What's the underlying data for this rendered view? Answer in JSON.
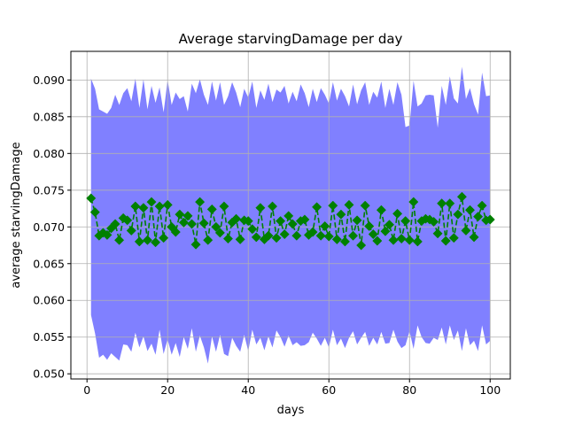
{
  "chart_data": {
    "type": "line",
    "title": "Average starvingDamage per day",
    "xlabel": "days",
    "ylabel": "average starvingDamage",
    "xlim": [
      -4,
      105
    ],
    "ylim": [
      0.0493,
      0.0939
    ],
    "xticks": [
      0,
      20,
      40,
      60,
      80,
      100
    ],
    "yticks": [
      0.05,
      0.055,
      0.06,
      0.065,
      0.07,
      0.075,
      0.08,
      0.085,
      0.09
    ],
    "ytick_labels": [
      "0.050",
      "0.055",
      "0.060",
      "0.065",
      "0.070",
      "0.075",
      "0.080",
      "0.085",
      "0.090"
    ],
    "grid": true,
    "colors": {
      "band": "#8080ff",
      "line": "#008000",
      "marker": "#008000"
    },
    "series": [
      {
        "kind": "band",
        "x": [
          1,
          2,
          3,
          4,
          5,
          6,
          7,
          8,
          9,
          10,
          11,
          12,
          13,
          14,
          15,
          16,
          17,
          18,
          19,
          20,
          21,
          22,
          23,
          24,
          25,
          26,
          27,
          28,
          29,
          30,
          31,
          32,
          33,
          34,
          35,
          36,
          37,
          38,
          39,
          40,
          41,
          42,
          43,
          44,
          45,
          46,
          47,
          48,
          49,
          50,
          51,
          52,
          53,
          54,
          55,
          56,
          57,
          58,
          59,
          60,
          61,
          62,
          63,
          64,
          65,
          66,
          67,
          68,
          69,
          70,
          71,
          72,
          73,
          74,
          75,
          76,
          77,
          78,
          79,
          80,
          81,
          82,
          83,
          84,
          85,
          86,
          87,
          88,
          89,
          90,
          91,
          92,
          93,
          94,
          95,
          96,
          97,
          98,
          99,
          100
        ],
        "upper": [
          0.0902,
          0.0888,
          0.086,
          0.0857,
          0.0854,
          0.0862,
          0.088,
          0.0866,
          0.0882,
          0.0889,
          0.0871,
          0.0902,
          0.0862,
          0.0901,
          0.086,
          0.0892,
          0.0869,
          0.089,
          0.0856,
          0.09,
          0.0866,
          0.0883,
          0.0874,
          0.0878,
          0.0857,
          0.0895,
          0.0882,
          0.0901,
          0.088,
          0.0866,
          0.0898,
          0.0872,
          0.0897,
          0.0866,
          0.0878,
          0.0897,
          0.0883,
          0.0863,
          0.0888,
          0.0876,
          0.0898,
          0.0862,
          0.0886,
          0.0873,
          0.0895,
          0.087,
          0.0887,
          0.0883,
          0.0892,
          0.0868,
          0.0884,
          0.0871,
          0.0894,
          0.0882,
          0.0863,
          0.0888,
          0.087,
          0.0889,
          0.088,
          0.0868,
          0.0897,
          0.0872,
          0.0888,
          0.0878,
          0.0864,
          0.0894,
          0.0867,
          0.0886,
          0.0897,
          0.0866,
          0.0884,
          0.0876,
          0.0898,
          0.0862,
          0.0888,
          0.0866,
          0.0897,
          0.088,
          0.0836,
          0.0838,
          0.0899,
          0.0864,
          0.0868,
          0.0879,
          0.088,
          0.0879,
          0.0835,
          0.0892,
          0.0866,
          0.0905,
          0.0875,
          0.0868,
          0.0918,
          0.0874,
          0.0889,
          0.0867,
          0.0853,
          0.091,
          0.0878,
          0.0879
        ],
        "lower": [
          0.058,
          0.0555,
          0.0522,
          0.0526,
          0.0519,
          0.0528,
          0.0523,
          0.0518,
          0.054,
          0.0539,
          0.053,
          0.0556,
          0.0536,
          0.0551,
          0.0531,
          0.0541,
          0.0526,
          0.056,
          0.0527,
          0.0547,
          0.0526,
          0.0542,
          0.0523,
          0.055,
          0.0534,
          0.0562,
          0.053,
          0.0552,
          0.0536,
          0.0514,
          0.0551,
          0.053,
          0.0553,
          0.0527,
          0.0524,
          0.0549,
          0.0538,
          0.053,
          0.0553,
          0.0531,
          0.056,
          0.054,
          0.0549,
          0.0532,
          0.0551,
          0.0536,
          0.0559,
          0.055,
          0.0537,
          0.0552,
          0.0539,
          0.0543,
          0.0538,
          0.0539,
          0.0543,
          0.0556,
          0.0548,
          0.0538,
          0.0549,
          0.0536,
          0.056,
          0.0539,
          0.0548,
          0.0535,
          0.0549,
          0.0558,
          0.054,
          0.0549,
          0.0557,
          0.0538,
          0.0549,
          0.054,
          0.0557,
          0.0541,
          0.0542,
          0.056,
          0.0544,
          0.0535,
          0.0539,
          0.0558,
          0.0534,
          0.0566,
          0.055,
          0.0542,
          0.0541,
          0.0549,
          0.0546,
          0.0563,
          0.054,
          0.0566,
          0.0546,
          0.0559,
          0.0531,
          0.0562,
          0.0539,
          0.0545,
          0.0531,
          0.0566,
          0.054,
          0.0545
        ]
      },
      {
        "kind": "line",
        "x": [
          1,
          2,
          3,
          4,
          5,
          6,
          7,
          8,
          9,
          10,
          11,
          12,
          13,
          14,
          15,
          16,
          17,
          18,
          19,
          20,
          21,
          22,
          23,
          24,
          25,
          26,
          27,
          28,
          29,
          30,
          31,
          32,
          33,
          34,
          35,
          36,
          37,
          38,
          39,
          40,
          41,
          42,
          43,
          44,
          45,
          46,
          47,
          48,
          49,
          50,
          51,
          52,
          53,
          54,
          55,
          56,
          57,
          58,
          59,
          60,
          61,
          62,
          63,
          64,
          65,
          66,
          67,
          68,
          69,
          70,
          71,
          72,
          73,
          74,
          75,
          76,
          77,
          78,
          79,
          80,
          81,
          82,
          83,
          84,
          85,
          86,
          87,
          88,
          89,
          90,
          91,
          92,
          93,
          94,
          95,
          96,
          97,
          98,
          99,
          100
        ],
        "values": [
          0.0739,
          0.072,
          0.0688,
          0.0692,
          0.0689,
          0.0698,
          0.0704,
          0.0682,
          0.0712,
          0.0709,
          0.0695,
          0.0728,
          0.068,
          0.0726,
          0.0682,
          0.0734,
          0.0679,
          0.0728,
          0.0685,
          0.073,
          0.07,
          0.0693,
          0.0717,
          0.0706,
          0.0715,
          0.0704,
          0.0676,
          0.0734,
          0.0705,
          0.0682,
          0.0724,
          0.07,
          0.0692,
          0.0728,
          0.0684,
          0.0706,
          0.0711,
          0.0683,
          0.0709,
          0.0708,
          0.0697,
          0.0686,
          0.0726,
          0.0683,
          0.0688,
          0.0728,
          0.0685,
          0.0708,
          0.069,
          0.0715,
          0.0704,
          0.0688,
          0.0708,
          0.071,
          0.0689,
          0.0693,
          0.0727,
          0.0688,
          0.0701,
          0.0687,
          0.0729,
          0.0683,
          0.0717,
          0.068,
          0.073,
          0.0688,
          0.0709,
          0.0675,
          0.0729,
          0.0701,
          0.069,
          0.0681,
          0.0723,
          0.0694,
          0.0703,
          0.0682,
          0.0718,
          0.0684,
          0.0708,
          0.0682,
          0.0734,
          0.068,
          0.0708,
          0.0711,
          0.071,
          0.0707,
          0.0691,
          0.0732,
          0.0681,
          0.0732,
          0.0685,
          0.0717,
          0.0741,
          0.0695,
          0.0723,
          0.0686,
          0.0714,
          0.0729,
          0.0709,
          0.071
        ]
      }
    ]
  }
}
